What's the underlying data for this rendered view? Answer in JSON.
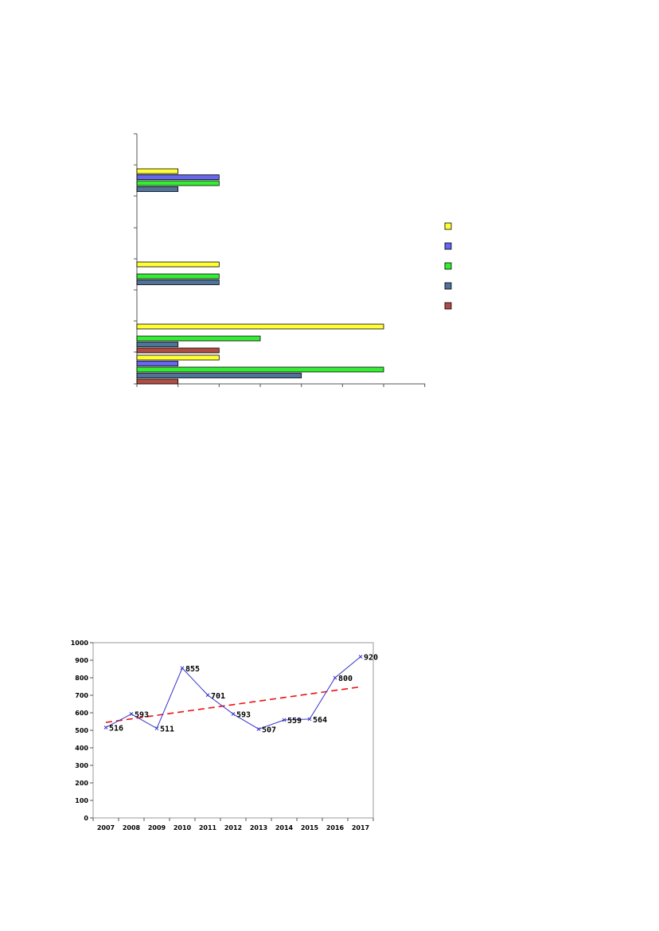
{
  "chart_data": [
    {
      "type": "bar",
      "orientation": "horizontal",
      "xlim": [
        0,
        7
      ],
      "grid": false,
      "legend": "right",
      "groups": [
        {
          "bars": [
            {
              "series": 0,
              "value": 1
            },
            {
              "series": 1,
              "value": 2
            },
            {
              "series": 2,
              "value": 2
            },
            {
              "series": 3,
              "value": 1
            }
          ]
        },
        {
          "bars": [
            {
              "series": 0,
              "value": 2
            },
            {
              "series": 2,
              "value": 2
            },
            {
              "series": 3,
              "value": 2
            }
          ]
        },
        {
          "bars": [
            {
              "series": 0,
              "value": 6
            },
            {
              "series": 2,
              "value": 3
            },
            {
              "series": 3,
              "value": 1
            },
            {
              "series": 4,
              "value": 2
            }
          ]
        },
        {
          "bars": [
            {
              "series": 0,
              "value": 2
            },
            {
              "series": 1,
              "value": 1
            },
            {
              "series": 2,
              "value": 6
            },
            {
              "series": 3,
              "value": 4
            },
            {
              "series": 4,
              "value": 1
            }
          ]
        }
      ],
      "series_colors": [
        "#ffff33",
        "#6666ee",
        "#33ee33",
        "#4f7399",
        "#b04c44"
      ]
    },
    {
      "type": "line",
      "x": [
        "2007",
        "2008",
        "2009",
        "2010",
        "2011",
        "2012",
        "2013",
        "2014",
        "2015",
        "2016",
        "2017"
      ],
      "values": [
        516,
        593,
        511,
        855,
        701,
        593,
        507,
        559,
        564,
        800,
        920
      ],
      "data_labels": [
        "516",
        "593",
        "511",
        "855",
        "701",
        "593",
        "507",
        "559",
        "564",
        "800",
        "920"
      ],
      "yticks": [
        "0",
        "100",
        "200",
        "300",
        "400",
        "500",
        "600",
        "700",
        "800",
        "900",
        "1000"
      ],
      "ylim": [
        0,
        1000
      ],
      "trendline": {
        "style": "dashed",
        "color": "#ee1111",
        "start": 545,
        "end": 748
      },
      "line_color": "#3333cc",
      "grid": false
    }
  ]
}
